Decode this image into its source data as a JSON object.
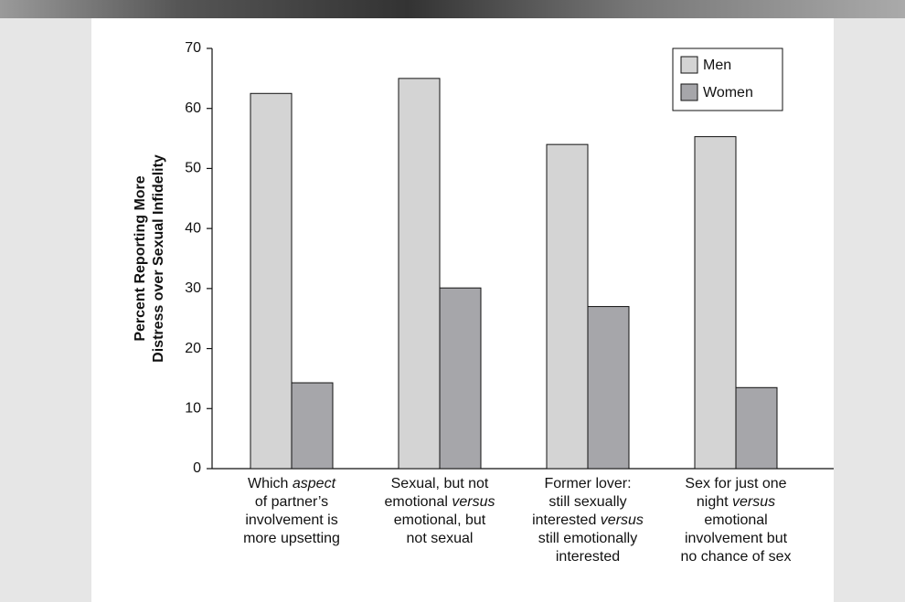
{
  "chart_data": {
    "type": "bar",
    "ylabel": [
      "Percent Reporting More",
      "Distress over Sexual Infidelity"
    ],
    "categories": [
      [
        "Which aspect",
        "of partner’s",
        "involvement is",
        "more upsetting"
      ],
      [
        "Sexual, but not",
        "emotional versus",
        "emotional, but",
        "not sexual"
      ],
      [
        "Former lover:",
        "still sexually",
        "interested versus",
        "still emotionally",
        "interested"
      ],
      [
        "Sex for just one",
        "night versus",
        "emotional",
        "involvement but",
        "no chance of sex"
      ]
    ],
    "italic_words": [
      "aspect",
      "versus"
    ],
    "series": [
      {
        "name": "Men",
        "color": "#d4d4d4",
        "values": [
          62.5,
          65,
          54,
          55.3
        ]
      },
      {
        "name": "Women",
        "color": "#a6a6aa",
        "values": [
          14.3,
          30.1,
          27,
          13.5
        ]
      }
    ],
    "ylim": [
      0,
      70
    ],
    "yticks": [
      0,
      10,
      20,
      30,
      40,
      50,
      60,
      70
    ],
    "legend": "top-right"
  }
}
